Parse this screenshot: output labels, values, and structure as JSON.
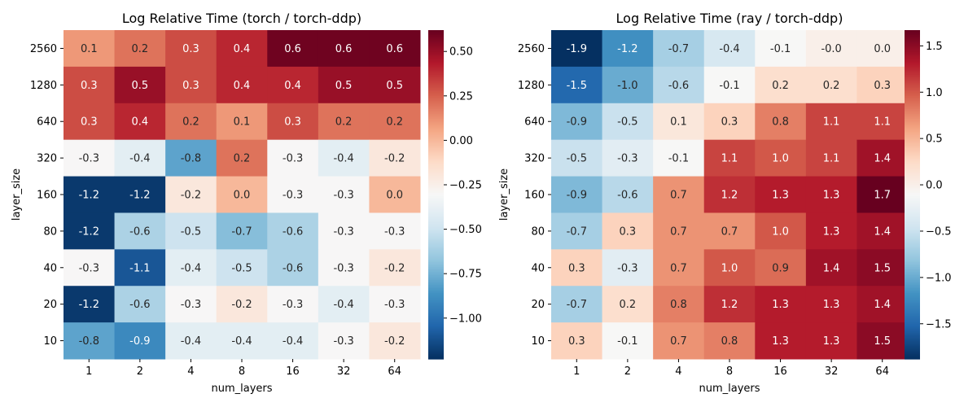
{
  "chart_data": [
    {
      "type": "heatmap",
      "title": "Log Relative Time (torch / torch-ddp)",
      "xlabel": "num_layers",
      "ylabel": "layer_size",
      "x_categories": [
        "1",
        "2",
        "4",
        "8",
        "16",
        "32",
        "64"
      ],
      "y_categories": [
        "2560",
        "1280",
        "640",
        "320",
        "160",
        "80",
        "40",
        "20",
        "10"
      ],
      "values": [
        [
          0.1,
          0.2,
          0.3,
          0.4,
          0.6,
          0.6,
          0.6
        ],
        [
          0.3,
          0.5,
          0.3,
          0.4,
          0.4,
          0.5,
          0.5
        ],
        [
          0.3,
          0.4,
          0.2,
          0.1,
          0.3,
          0.2,
          0.2
        ],
        [
          -0.3,
          -0.4,
          -0.8,
          0.2,
          -0.3,
          -0.4,
          -0.2
        ],
        [
          -1.2,
          -1.2,
          -0.2,
          0.0,
          -0.3,
          -0.3,
          0.0
        ],
        [
          -1.2,
          -0.6,
          -0.5,
          -0.7,
          -0.6,
          -0.3,
          -0.3
        ],
        [
          -0.3,
          -1.1,
          -0.4,
          -0.5,
          -0.6,
          -0.3,
          -0.2
        ],
        [
          -1.2,
          -0.6,
          -0.3,
          -0.2,
          -0.3,
          -0.4,
          -0.3
        ],
        [
          -0.8,
          -0.9,
          -0.4,
          -0.4,
          -0.4,
          -0.3,
          -0.2
        ]
      ],
      "annotations": [
        [
          "0.1",
          "0.2",
          "0.3",
          "0.4",
          "0.6",
          "0.6",
          "0.6"
        ],
        [
          "0.3",
          "0.5",
          "0.3",
          "0.4",
          "0.4",
          "0.5",
          "0.5"
        ],
        [
          "0.3",
          "0.4",
          "0.2",
          "0.1",
          "0.3",
          "0.2",
          "0.2"
        ],
        [
          "-0.3",
          "-0.4",
          "-0.8",
          "0.2",
          "-0.3",
          "-0.4",
          "-0.2"
        ],
        [
          "-1.2",
          "-1.2",
          "-0.2",
          "0.0",
          "-0.3",
          "-0.3",
          "0.0"
        ],
        [
          "-1.2",
          "-0.6",
          "-0.5",
          "-0.7",
          "-0.6",
          "-0.3",
          "-0.3"
        ],
        [
          "-0.3",
          "-1.1",
          "-0.4",
          "-0.5",
          "-0.6",
          "-0.3",
          "-0.2"
        ],
        [
          "-1.2",
          "-0.6",
          "-0.3",
          "-0.2",
          "-0.3",
          "-0.4",
          "-0.3"
        ],
        [
          "-0.8",
          "-0.9",
          "-0.4",
          "-0.4",
          "-0.4",
          "-0.3",
          "-0.2"
        ]
      ],
      "colormap": "RdBu_r",
      "vmin": -1.23,
      "vmax": 0.62,
      "colorbar_ticks": [
        -1.0,
        -0.75,
        -0.5,
        -0.25,
        0.0,
        0.25,
        0.5
      ],
      "colorbar_tick_labels": [
        "−1.00",
        "−0.75",
        "−0.50",
        "−0.25",
        "0.00",
        "0.25",
        "0.50"
      ]
    },
    {
      "type": "heatmap",
      "title": "Log Relative Time (ray / torch-ddp)",
      "xlabel": "num_layers",
      "ylabel": "layer_size",
      "x_categories": [
        "1",
        "2",
        "4",
        "8",
        "16",
        "32",
        "64"
      ],
      "y_categories": [
        "2560",
        "1280",
        "640",
        "320",
        "160",
        "80",
        "40",
        "20",
        "10"
      ],
      "values": [
        [
          -1.9,
          -1.2,
          -0.7,
          -0.4,
          -0.1,
          -0.0,
          0.0
        ],
        [
          -1.5,
          -1.0,
          -0.6,
          -0.1,
          0.2,
          0.2,
          0.3
        ],
        [
          -0.9,
          -0.5,
          0.1,
          0.3,
          0.8,
          1.1,
          1.1
        ],
        [
          -0.5,
          -0.3,
          -0.1,
          1.1,
          1.0,
          1.1,
          1.4
        ],
        [
          -0.9,
          -0.6,
          0.7,
          1.2,
          1.3,
          1.3,
          1.7
        ],
        [
          -0.7,
          0.3,
          0.7,
          0.7,
          1.0,
          1.3,
          1.4
        ],
        [
          0.3,
          -0.3,
          0.7,
          1.0,
          0.9,
          1.4,
          1.5
        ],
        [
          -0.7,
          0.2,
          0.8,
          1.2,
          1.3,
          1.3,
          1.4
        ],
        [
          0.3,
          -0.1,
          0.7,
          0.8,
          1.3,
          1.3,
          1.5
        ]
      ],
      "annotations": [
        [
          "-1.9",
          "-1.2",
          "-0.7",
          "-0.4",
          "-0.1",
          "-0.0",
          "0.0"
        ],
        [
          "-1.5",
          "-1.0",
          "-0.6",
          "-0.1",
          "0.2",
          "0.2",
          "0.3"
        ],
        [
          "-0.9",
          "-0.5",
          "0.1",
          "0.3",
          "0.8",
          "1.1",
          "1.1"
        ],
        [
          "-0.5",
          "-0.3",
          "-0.1",
          "1.1",
          "1.0",
          "1.1",
          "1.4"
        ],
        [
          "-0.9",
          "-0.6",
          "0.7",
          "1.2",
          "1.3",
          "1.3",
          "1.7"
        ],
        [
          "-0.7",
          "0.3",
          "0.7",
          "0.7",
          "1.0",
          "1.3",
          "1.4"
        ],
        [
          "0.3",
          "-0.3",
          "0.7",
          "1.0",
          "0.9",
          "1.4",
          "1.5"
        ],
        [
          "-0.7",
          "0.2",
          "0.8",
          "1.2",
          "1.3",
          "1.3",
          "1.4"
        ],
        [
          "0.3",
          "-0.1",
          "0.7",
          "0.8",
          "1.3",
          "1.3",
          "1.5"
        ]
      ],
      "colormap": "RdBu_r",
      "vmin": -1.88,
      "vmax": 1.67,
      "colorbar_ticks": [
        -1.5,
        -1.0,
        -0.5,
        0.0,
        0.5,
        1.0,
        1.5
      ],
      "colorbar_tick_labels": [
        "−1.5",
        "−1.0",
        "−0.5",
        "0.0",
        "0.5",
        "1.0",
        "1.5"
      ]
    }
  ]
}
